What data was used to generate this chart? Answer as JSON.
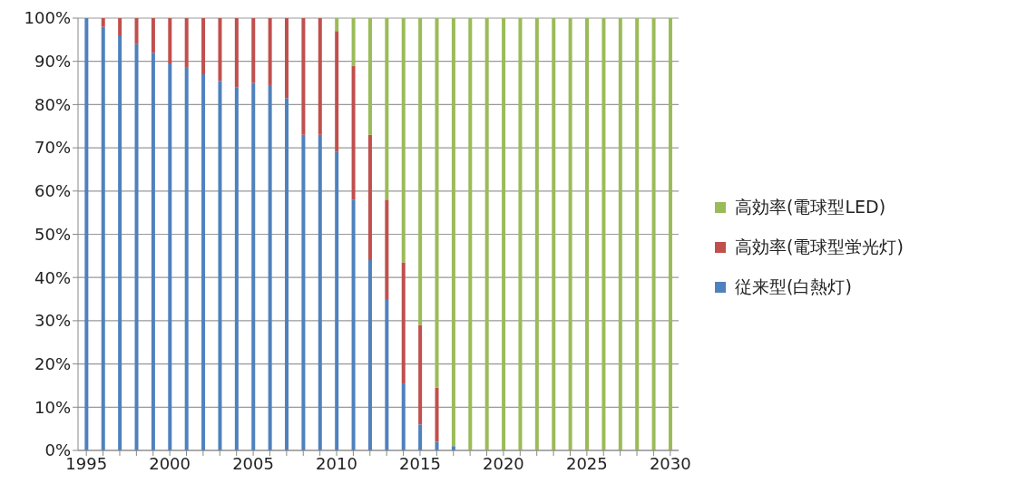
{
  "chart_data": {
    "type": "bar",
    "stacked": true,
    "grid": "y",
    "legend": "right",
    "categories": [
      "1995",
      null,
      null,
      null,
      null,
      "2000",
      null,
      null,
      null,
      null,
      "2005",
      null,
      null,
      null,
      null,
      "2010",
      null,
      null,
      null,
      null,
      "2015",
      null,
      null,
      null,
      null,
      "2020",
      null,
      null,
      null,
      null,
      "2025",
      null,
      null,
      null,
      null,
      "2030"
    ],
    "ylim": [
      0,
      100
    ],
    "yticks": [
      {
        "value": 0,
        "label": "0%"
      },
      {
        "value": 10,
        "label": "10%"
      },
      {
        "value": 20,
        "label": "20%"
      },
      {
        "value": 30,
        "label": "30%"
      },
      {
        "value": 40,
        "label": "40%"
      },
      {
        "value": 50,
        "label": "50%"
      },
      {
        "value": 60,
        "label": "60%"
      },
      {
        "value": 70,
        "label": "70%"
      },
      {
        "value": 80,
        "label": "80%"
      },
      {
        "value": 90,
        "label": "90%"
      },
      {
        "value": 100,
        "label": "100%"
      }
    ],
    "series": [
      {
        "name": "従来型(白熱灯)",
        "color": "#4f81bd",
        "values": [
          100,
          98,
          96,
          94,
          92,
          89.5,
          88.5,
          87,
          85.5,
          84,
          85,
          84.5,
          81.5,
          73,
          73,
          69,
          58,
          44,
          35,
          15.5,
          6,
          2,
          1,
          0,
          0,
          0,
          0,
          0,
          0,
          0,
          0,
          0,
          0,
          0,
          0,
          0
        ]
      },
      {
        "name": "高効率(電球型蛍光灯)",
        "color": "#c0504d",
        "values": [
          0,
          2,
          4,
          6,
          8,
          10.5,
          11.5,
          13,
          14.5,
          16,
          15,
          15.5,
          18.5,
          27,
          27,
          28,
          31,
          29,
          23,
          28,
          23,
          12.5,
          0,
          0,
          0,
          0,
          0,
          0,
          0,
          0,
          0,
          0,
          0,
          0,
          0,
          0
        ]
      },
      {
        "name": "高効率(電球型LED)",
        "color": "#9bbb59",
        "values": [
          0,
          0,
          0,
          0,
          0,
          0,
          0,
          0,
          0,
          0,
          0,
          0,
          0,
          0,
          0,
          3,
          11,
          27,
          42,
          56.5,
          71,
          85.5,
          99,
          100,
          100,
          100,
          100,
          100,
          100,
          100,
          100,
          100,
          100,
          100,
          100,
          100
        ]
      }
    ]
  }
}
